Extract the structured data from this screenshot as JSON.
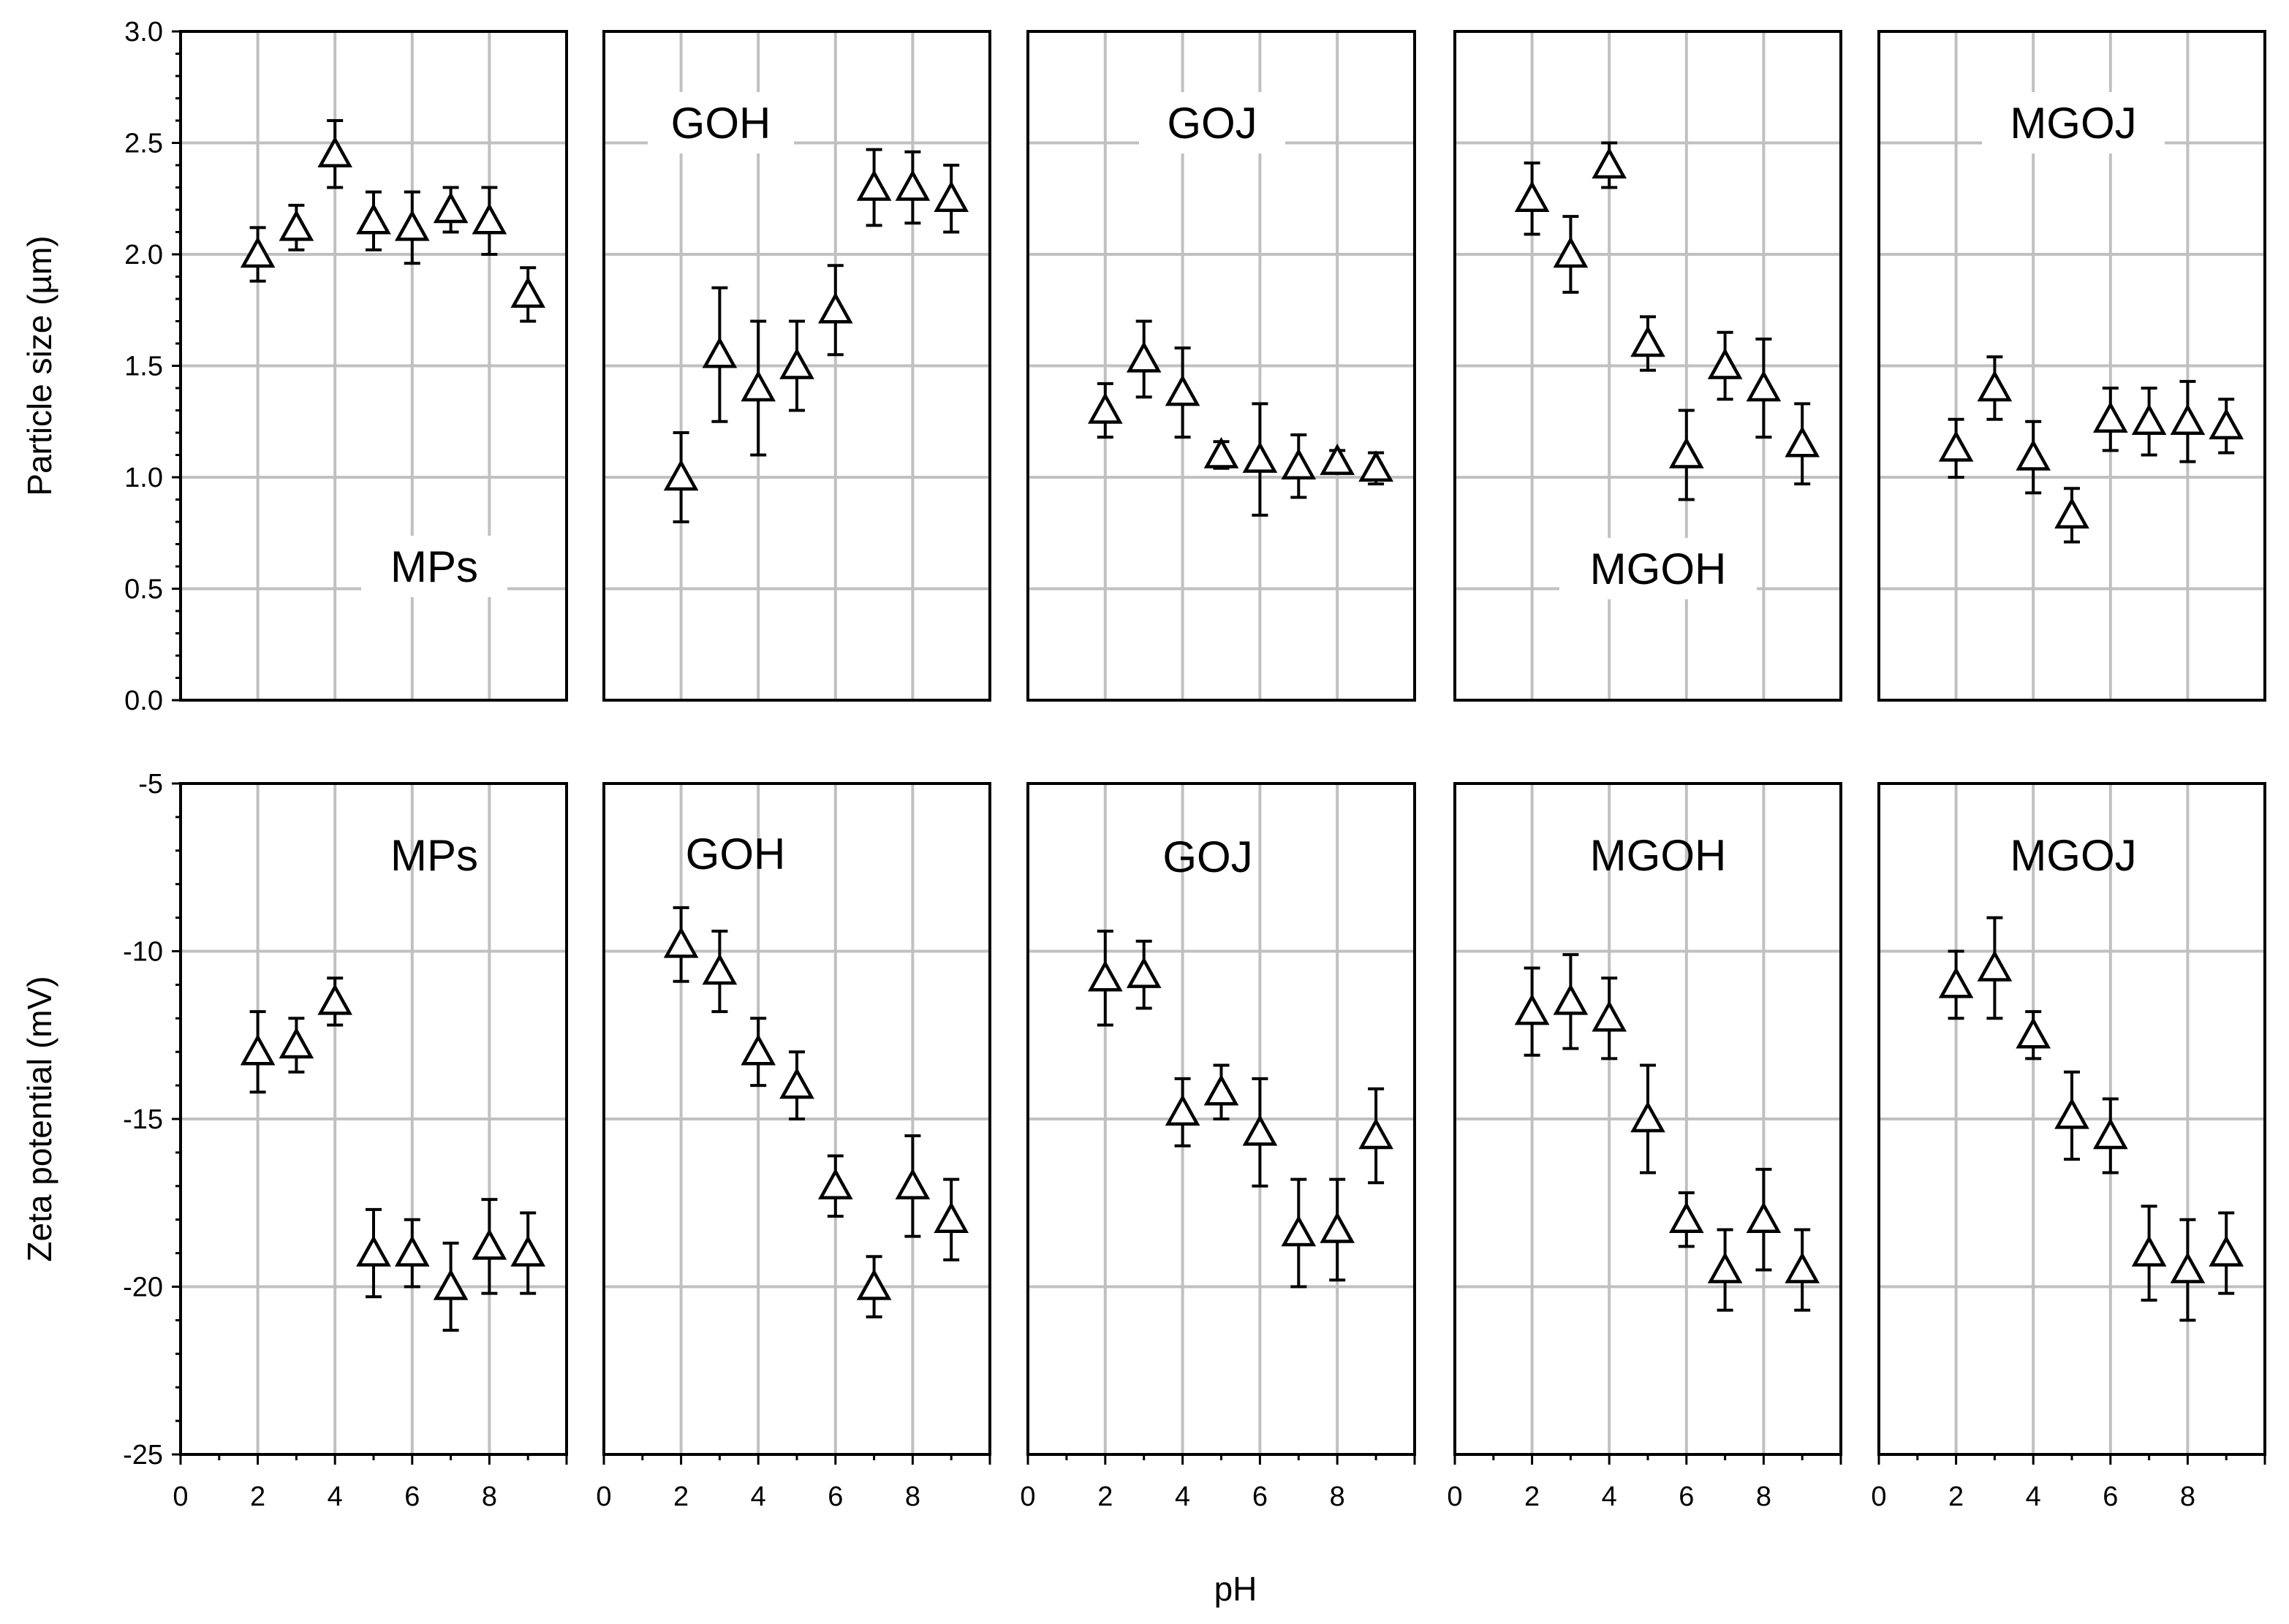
{
  "chart_data": [
    {
      "type": "scatter",
      "row": "particle_size",
      "ylabel": "Particle size (µm)",
      "ylim": [
        0,
        3
      ],
      "yticks": [
        "0.0",
        "0.5",
        "1.0",
        "1.5",
        "2.0",
        "2.5",
        "3.0"
      ],
      "xlim": [
        0,
        10
      ],
      "panels": [
        {
          "name": "MPs",
          "label_position": "bottom-right",
          "x": [
            2,
            3,
            4,
            5,
            6,
            7,
            8,
            9
          ],
          "y": [
            2.0,
            2.12,
            2.45,
            2.15,
            2.12,
            2.2,
            2.15,
            1.82
          ],
          "err": [
            0.12,
            0.1,
            0.15,
            0.13,
            0.16,
            0.1,
            0.15,
            0.12
          ]
        },
        {
          "name": "GOH",
          "label_position": "top-left",
          "x": [
            2,
            3,
            4,
            5,
            6,
            7,
            8,
            9
          ],
          "y": [
            1.0,
            1.55,
            1.4,
            1.5,
            1.75,
            2.3,
            2.3,
            2.25
          ],
          "err": [
            0.2,
            0.3,
            0.3,
            0.2,
            0.2,
            0.17,
            0.16,
            0.15
          ]
        },
        {
          "name": "GOJ",
          "label_position": "top-center",
          "x": [
            2,
            3,
            4,
            5,
            6,
            7,
            8,
            9
          ],
          "y": [
            1.3,
            1.53,
            1.38,
            1.1,
            1.08,
            1.05,
            1.07,
            1.04
          ],
          "err": [
            0.12,
            0.17,
            0.2,
            0.06,
            0.25,
            0.14,
            0.05,
            0.07
          ]
        },
        {
          "name": "MGOH",
          "label_position": "bottom-center",
          "x": [
            2,
            3,
            4,
            5,
            6,
            7,
            8,
            9
          ],
          "y": [
            2.25,
            2.0,
            2.4,
            1.6,
            1.1,
            1.5,
            1.4,
            1.15
          ],
          "err": [
            0.16,
            0.17,
            0.1,
            0.12,
            0.2,
            0.15,
            0.22,
            0.18
          ]
        },
        {
          "name": "MGOJ",
          "label_position": "top-center",
          "x": [
            2,
            3,
            4,
            5,
            6,
            7,
            8,
            9
          ],
          "y": [
            1.13,
            1.4,
            1.09,
            0.83,
            1.26,
            1.25,
            1.25,
            1.23
          ],
          "err": [
            0.13,
            0.14,
            0.16,
            0.12,
            0.14,
            0.15,
            0.18,
            0.12
          ]
        }
      ]
    },
    {
      "type": "scatter",
      "row": "zeta_potential",
      "ylabel": "Zeta potential (mV)",
      "ylim": [
        -25,
        -5
      ],
      "yticks": [
        "-25",
        "-20",
        "-15",
        "-10",
        "-5"
      ],
      "xlabel": "pH",
      "xlim": [
        0,
        10
      ],
      "xticks": [
        "0",
        "2",
        "4",
        "6",
        "8"
      ],
      "panels": [
        {
          "name": "MPs",
          "label_position": "top-right",
          "x": [
            2,
            3,
            4,
            5,
            6,
            7,
            8,
            9
          ],
          "y": [
            -13.0,
            -12.8,
            -11.5,
            -19.0,
            -19.0,
            -20.0,
            -18.8,
            -19.0
          ],
          "err": [
            1.2,
            0.8,
            0.7,
            1.3,
            1.0,
            1.3,
            1.4,
            1.2
          ]
        },
        {
          "name": "GOH",
          "label_position": "top-left",
          "x": [
            2,
            3,
            4,
            5,
            6,
            7,
            8,
            9
          ],
          "y": [
            -9.8,
            -10.6,
            -13.0,
            -14.0,
            -17.0,
            -20.0,
            -17.0,
            -18.0
          ],
          "err": [
            1.1,
            1.2,
            1.0,
            1.0,
            0.9,
            0.9,
            1.5,
            1.2
          ]
        },
        {
          "name": "GOJ",
          "label_position": "top-center",
          "x": [
            2,
            3,
            4,
            5,
            6,
            7,
            8,
            9
          ],
          "y": [
            -10.8,
            -10.7,
            -14.8,
            -14.2,
            -15.4,
            -18.4,
            -18.3,
            -15.5
          ],
          "err": [
            1.4,
            1.0,
            1.0,
            0.8,
            1.6,
            1.6,
            1.5,
            1.4
          ]
        },
        {
          "name": "MGOH",
          "label_position": "top-center",
          "x": [
            2,
            3,
            4,
            5,
            6,
            7,
            8,
            9
          ],
          "y": [
            -11.8,
            -11.5,
            -12.0,
            -15.0,
            -18.0,
            -19.5,
            -18.0,
            -19.5
          ],
          "err": [
            1.3,
            1.4,
            1.2,
            1.6,
            0.8,
            1.2,
            1.5,
            1.2
          ]
        },
        {
          "name": "MGOJ",
          "label_position": "top-center",
          "x": [
            2,
            3,
            4,
            5,
            6,
            7,
            8,
            9
          ],
          "y": [
            -11.0,
            -10.5,
            -12.5,
            -14.9,
            -15.5,
            -19.0,
            -19.5,
            -19.0
          ],
          "err": [
            1.0,
            1.5,
            0.7,
            1.3,
            1.1,
            1.4,
            1.5,
            1.2
          ]
        }
      ]
    }
  ]
}
